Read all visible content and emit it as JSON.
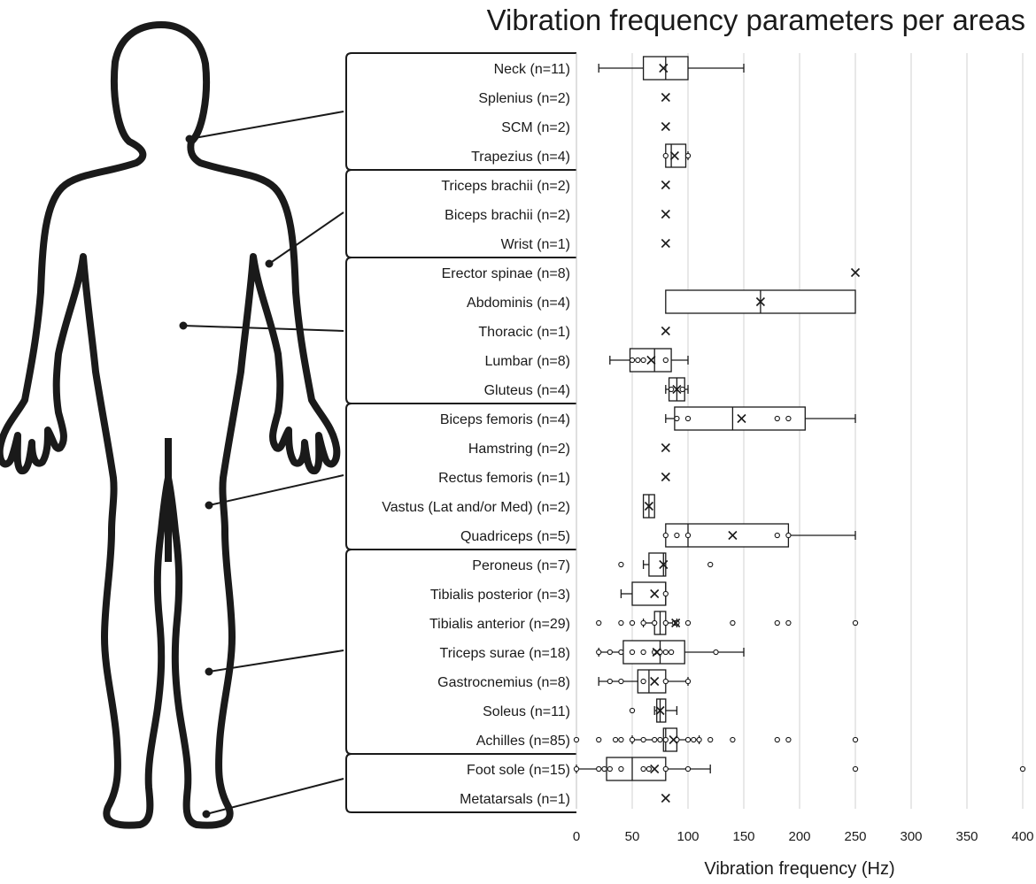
{
  "chart_data": {
    "type": "boxplot",
    "title": "Vibration frequency parameters per areas",
    "xlabel": "Vibration frequency (Hz)",
    "ylabel": "",
    "xlim": [
      0,
      400
    ],
    "xticks": [
      0,
      50,
      100,
      150,
      200,
      250,
      300,
      350,
      400
    ],
    "grid": true,
    "categories": [
      "Neck (n=11)",
      "Splenius (n=2)",
      "SCM (n=2)",
      "Trapezius (n=4)",
      "Triceps brachii (n=2)",
      "Biceps brachii (n=2)",
      "Wrist (n=1)",
      "Erector spinae (n=8)",
      "Abdominis (n=4)",
      "Thoracic (n=1)",
      "Lumbar (n=8)",
      "Gluteus (n=4)",
      "Biceps femoris (n=4)",
      "Hamstring (n=2)",
      "Rectus femoris (n=1)",
      "Vastus (Lat and/or Med) (n=2)",
      "Quadriceps (n=5)",
      "Peroneus (n=7)",
      "Tibialis posterior (n=3)",
      "Tibialis anterior (n=29)",
      "Triceps surae (n=18)",
      "Gastrocnemius (n=8)",
      "Soleus (n=11)",
      "Achilles (n=85)",
      "Foot sole (n=15)",
      "Metatarsals (n=1)"
    ],
    "groups": [
      {
        "region": "neck",
        "rows": [
          0,
          3
        ]
      },
      {
        "region": "arm",
        "rows": [
          4,
          6
        ]
      },
      {
        "region": "trunk",
        "rows": [
          7,
          11
        ]
      },
      {
        "region": "thigh",
        "rows": [
          12,
          16
        ]
      },
      {
        "region": "leg",
        "rows": [
          17,
          23
        ]
      },
      {
        "region": "foot",
        "rows": [
          24,
          25
        ]
      }
    ],
    "series": [
      {
        "name": "Neck (n=11)",
        "min": 20,
        "q1": 60,
        "median": 80,
        "q3": 100,
        "max": 150,
        "mean": 78,
        "points": []
      },
      {
        "name": "Splenius (n=2)",
        "min": 80,
        "q1": 80,
        "median": 80,
        "q3": 80,
        "max": 80,
        "mean": 80,
        "points": []
      },
      {
        "name": "SCM (n=2)",
        "min": 80,
        "q1": 80,
        "median": 80,
        "q3": 80,
        "max": 80,
        "mean": 80,
        "points": []
      },
      {
        "name": "Trapezius (n=4)",
        "min": 80,
        "q1": 80,
        "median": 85,
        "q3": 98,
        "max": 100,
        "mean": 88,
        "points": [
          80,
          100
        ]
      },
      {
        "name": "Triceps brachii (n=2)",
        "min": 80,
        "q1": 80,
        "median": 80,
        "q3": 80,
        "max": 80,
        "mean": 80,
        "points": []
      },
      {
        "name": "Biceps brachii (n=2)",
        "min": 80,
        "q1": 80,
        "median": 80,
        "q3": 80,
        "max": 80,
        "mean": 80,
        "points": []
      },
      {
        "name": "Wrist (n=1)",
        "min": 80,
        "q1": 80,
        "median": 80,
        "q3": 80,
        "max": 80,
        "mean": 80,
        "points": []
      },
      {
        "name": "Erector spinae (n=8)",
        "min": 250,
        "q1": 250,
        "median": 250,
        "q3": 250,
        "max": 250,
        "mean": 250,
        "points": []
      },
      {
        "name": "Abdominis (n=4)",
        "min": 80,
        "q1": 80,
        "median": 165,
        "q3": 250,
        "max": 250,
        "mean": 165,
        "points": []
      },
      {
        "name": "Thoracic (n=1)",
        "min": 80,
        "q1": 80,
        "median": 80,
        "q3": 80,
        "max": 80,
        "mean": 80,
        "points": []
      },
      {
        "name": "Lumbar (n=8)",
        "min": 30,
        "q1": 48,
        "median": 70,
        "q3": 85,
        "max": 100,
        "mean": 67,
        "points": [
          50,
          55,
          60,
          80
        ]
      },
      {
        "name": "Gluteus (n=4)",
        "min": 80,
        "q1": 83,
        "median": 90,
        "q3": 97,
        "max": 100,
        "mean": 90,
        "points": [
          85,
          95
        ]
      },
      {
        "name": "Biceps femoris (n=4)",
        "min": 80,
        "q1": 88,
        "median": 140,
        "q3": 205,
        "max": 250,
        "mean": 148,
        "points": [
          90,
          100,
          180,
          190
        ]
      },
      {
        "name": "Hamstring (n=2)",
        "min": 80,
        "q1": 80,
        "median": 80,
        "q3": 80,
        "max": 80,
        "mean": 80,
        "points": []
      },
      {
        "name": "Rectus femoris (n=1)",
        "min": 80,
        "q1": 80,
        "median": 80,
        "q3": 80,
        "max": 80,
        "mean": 80,
        "points": []
      },
      {
        "name": "Vastus (Lat and/or Med) (n=2)",
        "min": 60,
        "q1": 60,
        "median": 65,
        "q3": 70,
        "max": 70,
        "mean": 65,
        "points": []
      },
      {
        "name": "Quadriceps (n=5)",
        "min": 80,
        "q1": 80,
        "median": 100,
        "q3": 190,
        "max": 250,
        "mean": 140,
        "points": [
          80,
          90,
          100,
          180,
          190
        ]
      },
      {
        "name": "Peroneus (n=7)",
        "min": 60,
        "q1": 65,
        "median": 78,
        "q3": 80,
        "max": 80,
        "mean": 78,
        "points": [
          40,
          120
        ]
      },
      {
        "name": "Tibialis posterior (n=3)",
        "min": 40,
        "q1": 50,
        "median": 80,
        "q3": 80,
        "max": 80,
        "mean": 70,
        "points": [
          80
        ]
      },
      {
        "name": "Tibialis anterior (n=29)",
        "min": 60,
        "q1": 70,
        "median": 75,
        "q3": 80,
        "max": 90,
        "mean": 89,
        "points": [
          20,
          40,
          50,
          60,
          70,
          80,
          88,
          90,
          100,
          140,
          180,
          190,
          250
        ]
      },
      {
        "name": "Triceps surae (n=18)",
        "min": 20,
        "q1": 42,
        "median": 75,
        "q3": 97,
        "max": 150,
        "mean": 72,
        "points": [
          20,
          30,
          40,
          50,
          60,
          70,
          75,
          80,
          85,
          125
        ]
      },
      {
        "name": "Gastrocnemius (n=8)",
        "min": 20,
        "q1": 55,
        "median": 65,
        "q3": 80,
        "max": 100,
        "mean": 70,
        "points": [
          30,
          40,
          60,
          80,
          100
        ]
      },
      {
        "name": "Soleus (n=11)",
        "min": 70,
        "q1": 72,
        "median": 75,
        "q3": 80,
        "max": 90,
        "mean": 75,
        "points": [
          50
        ]
      },
      {
        "name": "Achilles (n=85)",
        "min": 50,
        "q1": 78,
        "median": 80,
        "q3": 90,
        "max": 110,
        "mean": 87,
        "points": [
          0,
          20,
          35,
          40,
          50,
          60,
          70,
          75,
          80,
          90,
          100,
          105,
          110,
          120,
          140,
          180,
          190,
          250
        ]
      },
      {
        "name": "Foot sole (n=15)",
        "min": 0,
        "q1": 27,
        "median": 50,
        "q3": 80,
        "max": 120,
        "mean": 70,
        "points": [
          0,
          20,
          25,
          30,
          40,
          60,
          65,
          80,
          100,
          250,
          400
        ]
      },
      {
        "name": "Metatarsals (n=1)",
        "min": 80,
        "q1": 80,
        "median": 80,
        "q3": 80,
        "max": 80,
        "mean": 80,
        "points": []
      }
    ]
  }
}
